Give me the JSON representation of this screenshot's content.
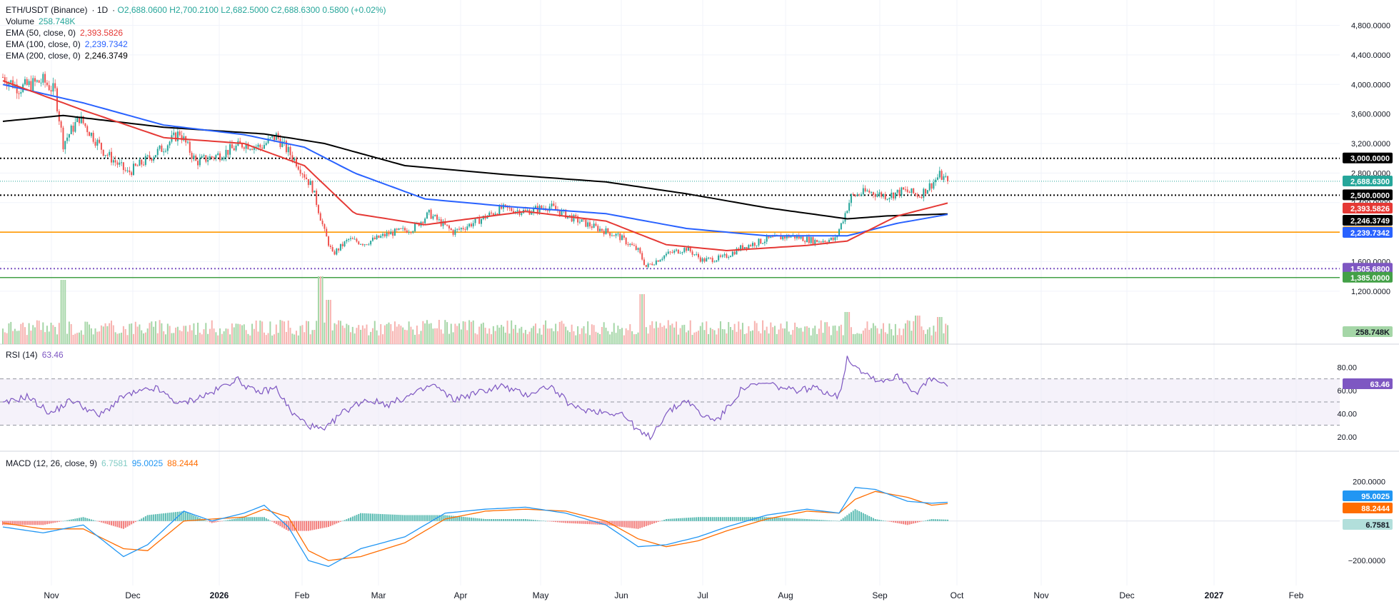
{
  "header": {
    "symbol": "ETH/USDT (Binance)",
    "interval": "1D",
    "ohlc": "O2,688.0600  H2,700.2100  L2,682.5000  C2,688.6300  0.5800 (+0.02%)",
    "volume_label": "Volume",
    "volume_value": "258.748K",
    "ema50_label": "EMA (50, close, 0)",
    "ema50_value": "2,393.5826",
    "ema100_label": "EMA (100, close, 0)",
    "ema100_value": "2,239.7342",
    "ema200_label": "EMA (200, close, 0)",
    "ema200_value": "2,246.3749"
  },
  "rsi_legend": {
    "label": "RSI (14)",
    "value": "63.46"
  },
  "macd_legend": {
    "label": "MACD (12, 26, close, 9)",
    "hist": "6.7581",
    "macd": "95.0025",
    "signal": "88.2444"
  },
  "colors": {
    "up": "#26a69a",
    "down": "#ef5350",
    "ema50": "#e53935",
    "ema100": "#2962ff",
    "ema200": "#000000",
    "orange": "#ff9800",
    "green": "#43a047",
    "purple": "#7e57c2",
    "macd": "#2196f3",
    "signal": "#ff6d00"
  },
  "chart_data": {
    "type": "candlestick",
    "x_tick_labels": [
      "Nov",
      "Dec",
      "2026",
      "Feb",
      "Mar",
      "Apr",
      "May",
      "Jun",
      "Jul",
      "Aug",
      "Sep",
      "Oct",
      "Nov",
      "Dec",
      "2027",
      "Feb"
    ],
    "price_axis": {
      "ticks": [
        1200,
        1600,
        2000,
        2400,
        2800,
        3200,
        3600,
        4000,
        4400,
        4800
      ],
      "ylim": [
        1100,
        4950
      ]
    },
    "horizontal_levels": [
      {
        "value": 3000,
        "label": "3,000.0000",
        "style": "dotted",
        "color": "#000000"
      },
      {
        "value": 2500,
        "label": "2,500.0000",
        "style": "dotted",
        "color": "#000000"
      },
      {
        "value": 2000,
        "label": "2,000.0000",
        "style": "solid",
        "color": "#ff9800"
      },
      {
        "value": 1505.68,
        "label": "1,505.6800",
        "style": "dotted",
        "color": "#7e57c2"
      },
      {
        "value": 1385,
        "label": "1,385.0000",
        "style": "solid",
        "color": "#43a047"
      }
    ],
    "price_tags": [
      {
        "value": 2688.63,
        "label": "2,688.6300",
        "color": "#26a69a"
      },
      {
        "value": 2393.5826,
        "label": "2,393.5826",
        "color": "#e53935"
      },
      {
        "value": 2246.3749,
        "label": "2,246.3749",
        "color": "#000000"
      },
      {
        "value": 2239.7342,
        "label": "2,239.7342",
        "color": "#2962ff"
      }
    ],
    "price_path": [
      [
        0,
        4100
      ],
      [
        8,
        3950
      ],
      [
        20,
        4050
      ],
      [
        26,
        3900
      ],
      [
        30,
        3200
      ],
      [
        38,
        3550
      ],
      [
        50,
        3100
      ],
      [
        62,
        2800
      ],
      [
        70,
        2950
      ],
      [
        80,
        3150
      ],
      [
        88,
        3350
      ],
      [
        96,
        2950
      ],
      [
        108,
        3050
      ],
      [
        120,
        3200
      ],
      [
        128,
        3150
      ],
      [
        136,
        3300
      ],
      [
        146,
        2950
      ],
      [
        154,
        2600
      ],
      [
        160,
        2000
      ],
      [
        164,
        1700
      ],
      [
        172,
        1900
      ],
      [
        180,
        1850
      ],
      [
        192,
        1980
      ],
      [
        204,
        2050
      ],
      [
        212,
        2250
      ],
      [
        224,
        2000
      ],
      [
        236,
        2150
      ],
      [
        248,
        2320
      ],
      [
        260,
        2280
      ],
      [
        272,
        2350
      ],
      [
        284,
        2180
      ],
      [
        296,
        2050
      ],
      [
        306,
        1950
      ],
      [
        316,
        1750
      ],
      [
        320,
        1530
      ],
      [
        330,
        1700
      ],
      [
        340,
        1780
      ],
      [
        348,
        1620
      ],
      [
        358,
        1650
      ],
      [
        368,
        1800
      ],
      [
        380,
        1900
      ],
      [
        392,
        1950
      ],
      [
        404,
        1880
      ],
      [
        414,
        1900
      ],
      [
        418,
        2180
      ],
      [
        422,
        2480
      ],
      [
        430,
        2550
      ],
      [
        440,
        2490
      ],
      [
        448,
        2560
      ],
      [
        456,
        2500
      ],
      [
        462,
        2650
      ],
      [
        466,
        2770
      ],
      [
        470,
        2688.63
      ]
    ],
    "ema50": [
      [
        0,
        4050
      ],
      [
        40,
        3650
      ],
      [
        80,
        3280
      ],
      [
        120,
        3200
      ],
      [
        150,
        2900
      ],
      [
        175,
        2250
      ],
      [
        210,
        2100
      ],
      [
        260,
        2280
      ],
      [
        300,
        2150
      ],
      [
        330,
        1830
      ],
      [
        360,
        1750
      ],
      [
        400,
        1820
      ],
      [
        420,
        1880
      ],
      [
        445,
        2220
      ],
      [
        470,
        2393.58
      ]
    ],
    "ema100": [
      [
        0,
        4000
      ],
      [
        40,
        3750
      ],
      [
        80,
        3450
      ],
      [
        120,
        3320
      ],
      [
        150,
        3150
      ],
      [
        175,
        2800
      ],
      [
        210,
        2450
      ],
      [
        250,
        2350
      ],
      [
        300,
        2250
      ],
      [
        340,
        2050
      ],
      [
        380,
        1950
      ],
      [
        420,
        1950
      ],
      [
        445,
        2120
      ],
      [
        470,
        2239.73
      ]
    ],
    "ema200": [
      [
        0,
        3500
      ],
      [
        30,
        3580
      ],
      [
        80,
        3420
      ],
      [
        130,
        3330
      ],
      [
        160,
        3200
      ],
      [
        200,
        2900
      ],
      [
        250,
        2780
      ],
      [
        300,
        2680
      ],
      [
        340,
        2520
      ],
      [
        380,
        2330
      ],
      [
        420,
        2180
      ],
      [
        440,
        2220
      ],
      [
        470,
        2246.37
      ]
    ],
    "volume": {
      "last_label": "258.748K",
      "spikes": [
        [
          30,
          0.9
        ],
        [
          158,
          0.95
        ],
        [
          162,
          0.62
        ],
        [
          318,
          0.7
        ],
        [
          420,
          0.45
        ],
        [
          455,
          0.4
        ],
        [
          466,
          0.38
        ]
      ]
    },
    "rsi": {
      "axis_ticks": [
        20,
        40,
        60,
        80
      ],
      "bands": [
        70,
        50,
        30
      ],
      "ylim": [
        10,
        95
      ],
      "current_label": "63.46",
      "path": [
        [
          0,
          48
        ],
        [
          12,
          55
        ],
        [
          24,
          40
        ],
        [
          34,
          52
        ],
        [
          48,
          38
        ],
        [
          60,
          55
        ],
        [
          76,
          62
        ],
        [
          88,
          48
        ],
        [
          104,
          58
        ],
        [
          116,
          70
        ],
        [
          126,
          58
        ],
        [
          136,
          62
        ],
        [
          144,
          40
        ],
        [
          152,
          30
        ],
        [
          160,
          25
        ],
        [
          168,
          40
        ],
        [
          180,
          52
        ],
        [
          192,
          48
        ],
        [
          206,
          58
        ],
        [
          214,
          65
        ],
        [
          224,
          52
        ],
        [
          236,
          58
        ],
        [
          248,
          64
        ],
        [
          260,
          56
        ],
        [
          272,
          64
        ],
        [
          284,
          45
        ],
        [
          296,
          42
        ],
        [
          308,
          40
        ],
        [
          318,
          22
        ],
        [
          322,
          20
        ],
        [
          330,
          40
        ],
        [
          340,
          52
        ],
        [
          348,
          38
        ],
        [
          356,
          35
        ],
        [
          368,
          62
        ],
        [
          380,
          66
        ],
        [
          392,
          60
        ],
        [
          404,
          62
        ],
        [
          416,
          55
        ],
        [
          420,
          88
        ],
        [
          428,
          76
        ],
        [
          436,
          68
        ],
        [
          446,
          72
        ],
        [
          454,
          58
        ],
        [
          462,
          70
        ],
        [
          470,
          63.46
        ]
      ]
    },
    "macd": {
      "axis_ticks": [
        -200,
        200
      ],
      "ylim": [
        -290,
        245
      ],
      "macd_label": "95.0025",
      "signal_label": "88.2444",
      "hist_label": "6.7581",
      "macd_path": [
        [
          0,
          -30
        ],
        [
          20,
          -60
        ],
        [
          40,
          -20
        ],
        [
          60,
          -180
        ],
        [
          72,
          -120
        ],
        [
          90,
          50
        ],
        [
          104,
          0
        ],
        [
          120,
          40
        ],
        [
          130,
          80
        ],
        [
          142,
          -30
        ],
        [
          152,
          -200
        ],
        [
          162,
          -230
        ],
        [
          178,
          -140
        ],
        [
          200,
          -80
        ],
        [
          220,
          40
        ],
        [
          240,
          60
        ],
        [
          260,
          70
        ],
        [
          280,
          40
        ],
        [
          300,
          -20
        ],
        [
          316,
          -130
        ],
        [
          330,
          -120
        ],
        [
          346,
          -80
        ],
        [
          360,
          -30
        ],
        [
          380,
          30
        ],
        [
          400,
          60
        ],
        [
          416,
          40
        ],
        [
          424,
          170
        ],
        [
          434,
          160
        ],
        [
          450,
          100
        ],
        [
          462,
          90
        ],
        [
          470,
          95
        ]
      ],
      "signal_path": [
        [
          0,
          -10
        ],
        [
          20,
          -40
        ],
        [
          40,
          -40
        ],
        [
          60,
          -140
        ],
        [
          72,
          -150
        ],
        [
          90,
          0
        ],
        [
          104,
          10
        ],
        [
          120,
          20
        ],
        [
          130,
          60
        ],
        [
          142,
          20
        ],
        [
          152,
          -150
        ],
        [
          162,
          -200
        ],
        [
          178,
          -180
        ],
        [
          200,
          -110
        ],
        [
          220,
          10
        ],
        [
          240,
          50
        ],
        [
          260,
          60
        ],
        [
          280,
          50
        ],
        [
          300,
          0
        ],
        [
          316,
          -90
        ],
        [
          330,
          -130
        ],
        [
          346,
          -100
        ],
        [
          360,
          -50
        ],
        [
          380,
          10
        ],
        [
          400,
          50
        ],
        [
          416,
          40
        ],
        [
          424,
          110
        ],
        [
          434,
          150
        ],
        [
          450,
          120
        ],
        [
          462,
          80
        ],
        [
          470,
          88
        ]
      ]
    }
  }
}
